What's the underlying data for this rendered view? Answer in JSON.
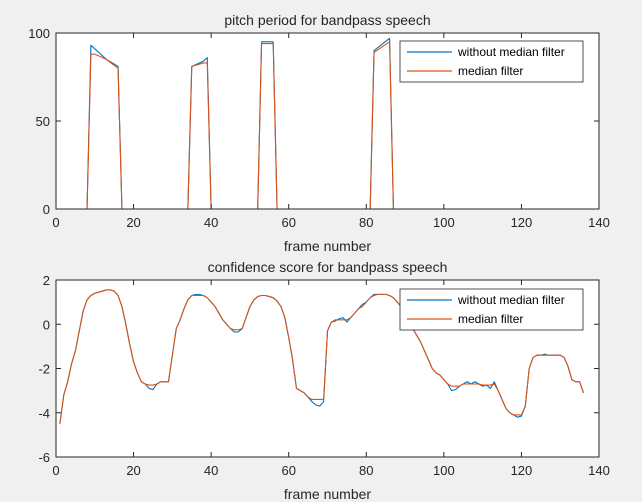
{
  "chart_data": [
    {
      "type": "line",
      "title": "pitch period for bandpass speech",
      "xlabel": "frame number",
      "ylabel": "",
      "xlim": [
        0,
        140
      ],
      "ylim": [
        0,
        100
      ],
      "xticks": [
        0,
        20,
        40,
        60,
        80,
        100,
        120,
        140
      ],
      "yticks": [
        0,
        50,
        100
      ],
      "grid": false,
      "legend_position": "top-right",
      "series": [
        {
          "name": "without median filter",
          "color": "#0072BD",
          "x": [
            0,
            8,
            9,
            10,
            13,
            16,
            17,
            34,
            35,
            38,
            39,
            40,
            52,
            53,
            56,
            57,
            81,
            82,
            86,
            87,
            136
          ],
          "y": [
            0,
            0,
            93,
            91,
            85,
            81,
            0,
            0,
            81,
            84,
            86,
            0,
            0,
            95,
            95,
            0,
            0,
            90,
            97,
            0,
            0
          ]
        },
        {
          "name": "median filter",
          "color": "#D95319",
          "x": [
            0,
            8,
            9,
            10,
            13,
            16,
            17,
            34,
            35,
            38,
            39,
            40,
            52,
            53,
            56,
            57,
            81,
            82,
            86,
            87,
            136
          ],
          "y": [
            0,
            0,
            88,
            88,
            85,
            80,
            0,
            0,
            81,
            83,
            83,
            0,
            0,
            94,
            94,
            0,
            0,
            89,
            95,
            0,
            0
          ]
        }
      ]
    },
    {
      "type": "line",
      "title": "confidence score for bandpass speech",
      "xlabel": "frame number",
      "ylabel": "",
      "xlim": [
        0,
        140
      ],
      "ylim": [
        -6,
        2
      ],
      "xticks": [
        0,
        20,
        40,
        60,
        80,
        100,
        120,
        140
      ],
      "yticks": [
        -6,
        -4,
        -2,
        0,
        2
      ],
      "grid": false,
      "legend_position": "top-right",
      "series": [
        {
          "name": "without median filter",
          "color": "#0072BD",
          "x": [
            1,
            2,
            3,
            4,
            5,
            6,
            7,
            8,
            9,
            10,
            11,
            12,
            13,
            14,
            15,
            16,
            17,
            18,
            19,
            20,
            21,
            22,
            23,
            24,
            25,
            26,
            27,
            28,
            29,
            30,
            31,
            32,
            33,
            34,
            35,
            36,
            37,
            38,
            39,
            40,
            41,
            42,
            43,
            44,
            45,
            46,
            47,
            48,
            49,
            50,
            51,
            52,
            53,
            54,
            55,
            56,
            57,
            58,
            59,
            60,
            61,
            62,
            63,
            64,
            65,
            66,
            67,
            68,
            69,
            70,
            71,
            72,
            73,
            74,
            75,
            76,
            77,
            78,
            79,
            80,
            81,
            82,
            83,
            84,
            85,
            86,
            87,
            88,
            89,
            90,
            91,
            92,
            93,
            94,
            95,
            96,
            97,
            98,
            99,
            100,
            101,
            102,
            103,
            104,
            105,
            106,
            107,
            108,
            109,
            110,
            111,
            112,
            113,
            114,
            115,
            116,
            117,
            118,
            119,
            120,
            121,
            122,
            123,
            124,
            125,
            126,
            127,
            128,
            129,
            130,
            131,
            132,
            133,
            134,
            135,
            136
          ],
          "y": [
            -4.5,
            -3.2,
            -2.6,
            -1.8,
            -1.2,
            -0.3,
            0.6,
            1.1,
            1.3,
            1.4,
            1.45,
            1.5,
            1.55,
            1.55,
            1.5,
            1.3,
            0.8,
            0.0,
            -0.9,
            -1.7,
            -2.2,
            -2.6,
            -2.7,
            -2.9,
            -2.95,
            -2.7,
            -2.6,
            -2.6,
            -2.6,
            -1.4,
            -0.2,
            0.2,
            0.7,
            1.1,
            1.3,
            1.35,
            1.35,
            1.3,
            1.2,
            1.0,
            0.8,
            0.5,
            0.2,
            0.0,
            -0.2,
            -0.35,
            -0.35,
            -0.2,
            0.3,
            0.8,
            1.1,
            1.25,
            1.3,
            1.3,
            1.25,
            1.2,
            1.05,
            0.8,
            0.3,
            -0.6,
            -1.6,
            -2.9,
            -3.0,
            -3.1,
            -3.3,
            -3.5,
            -3.65,
            -3.7,
            -3.5,
            -0.3,
            0.1,
            0.15,
            0.25,
            0.3,
            0.1,
            0.3,
            0.5,
            0.7,
            0.9,
            1.0,
            1.2,
            1.35,
            1.35,
            1.35,
            1.35,
            1.3,
            1.2,
            1.0,
            0.8,
            0.5,
            0.1,
            -0.2,
            -0.5,
            -0.8,
            -1.2,
            -1.6,
            -2.0,
            -2.2,
            -2.3,
            -2.5,
            -2.7,
            -3.0,
            -2.95,
            -2.8,
            -2.7,
            -2.6,
            -2.7,
            -2.6,
            -2.7,
            -2.8,
            -2.75,
            -2.9,
            -2.6,
            -3.0,
            -3.4,
            -3.8,
            -4.0,
            -4.1,
            -4.2,
            -4.15,
            -3.7,
            -2.0,
            -1.5,
            -1.4,
            -1.4,
            -1.35,
            -1.4,
            -1.4,
            -1.4,
            -1.4,
            -1.5,
            -1.9,
            -2.5,
            -2.6,
            -2.6,
            -3.1
          ],
          "note": "series drawn behind median filter line"
        },
        {
          "name": "median filter",
          "color": "#D95319",
          "x": [
            1,
            2,
            3,
            4,
            5,
            6,
            7,
            8,
            9,
            10,
            11,
            12,
            13,
            14,
            15,
            16,
            17,
            18,
            19,
            20,
            21,
            22,
            23,
            24,
            25,
            26,
            27,
            28,
            29,
            30,
            31,
            32,
            33,
            34,
            35,
            36,
            37,
            38,
            39,
            40,
            41,
            42,
            43,
            44,
            45,
            46,
            47,
            48,
            49,
            50,
            51,
            52,
            53,
            54,
            55,
            56,
            57,
            58,
            59,
            60,
            61,
            62,
            63,
            64,
            65,
            66,
            67,
            68,
            69,
            70,
            71,
            72,
            73,
            74,
            75,
            76,
            77,
            78,
            79,
            80,
            81,
            82,
            83,
            84,
            85,
            86,
            87,
            88,
            89,
            90,
            91,
            92,
            93,
            94,
            95,
            96,
            97,
            98,
            99,
            100,
            101,
            102,
            103,
            104,
            105,
            106,
            107,
            108,
            109,
            110,
            111,
            112,
            113,
            114,
            115,
            116,
            117,
            118,
            119,
            120,
            121,
            122,
            123,
            124,
            125,
            126,
            127,
            128,
            129,
            130,
            131,
            132,
            133,
            134,
            135,
            136
          ],
          "y": [
            -4.5,
            -3.2,
            -2.6,
            -1.8,
            -1.2,
            -0.3,
            0.6,
            1.1,
            1.3,
            1.4,
            1.45,
            1.5,
            1.55,
            1.55,
            1.5,
            1.3,
            0.8,
            0.0,
            -0.9,
            -1.7,
            -2.2,
            -2.6,
            -2.7,
            -2.75,
            -2.75,
            -2.7,
            -2.6,
            -2.6,
            -2.6,
            -1.4,
            -0.2,
            0.2,
            0.7,
            1.1,
            1.3,
            1.3,
            1.3,
            1.3,
            1.2,
            1.0,
            0.8,
            0.5,
            0.2,
            0.0,
            -0.2,
            -0.25,
            -0.25,
            -0.2,
            0.3,
            0.8,
            1.1,
            1.25,
            1.3,
            1.3,
            1.25,
            1.2,
            1.05,
            0.8,
            0.3,
            -0.6,
            -1.6,
            -2.9,
            -3.0,
            -3.1,
            -3.3,
            -3.4,
            -3.4,
            -3.4,
            -3.4,
            -0.3,
            0.1,
            0.2,
            0.2,
            0.2,
            0.2,
            0.3,
            0.5,
            0.7,
            0.8,
            1.0,
            1.2,
            1.3,
            1.35,
            1.35,
            1.35,
            1.3,
            1.2,
            1.0,
            0.8,
            0.5,
            0.1,
            -0.2,
            -0.5,
            -0.8,
            -1.2,
            -1.6,
            -2.0,
            -2.2,
            -2.3,
            -2.5,
            -2.7,
            -2.8,
            -2.8,
            -2.8,
            -2.7,
            -2.7,
            -2.7,
            -2.7,
            -2.7,
            -2.75,
            -2.75,
            -2.75,
            -2.7,
            -3.0,
            -3.4,
            -3.8,
            -4.0,
            -4.1,
            -4.1,
            -4.1,
            -3.7,
            -2.0,
            -1.5,
            -1.4,
            -1.4,
            -1.4,
            -1.4,
            -1.4,
            -1.4,
            -1.4,
            -1.5,
            -1.9,
            -2.5,
            -2.6,
            -2.6,
            -3.1
          ]
        }
      ]
    }
  ]
}
